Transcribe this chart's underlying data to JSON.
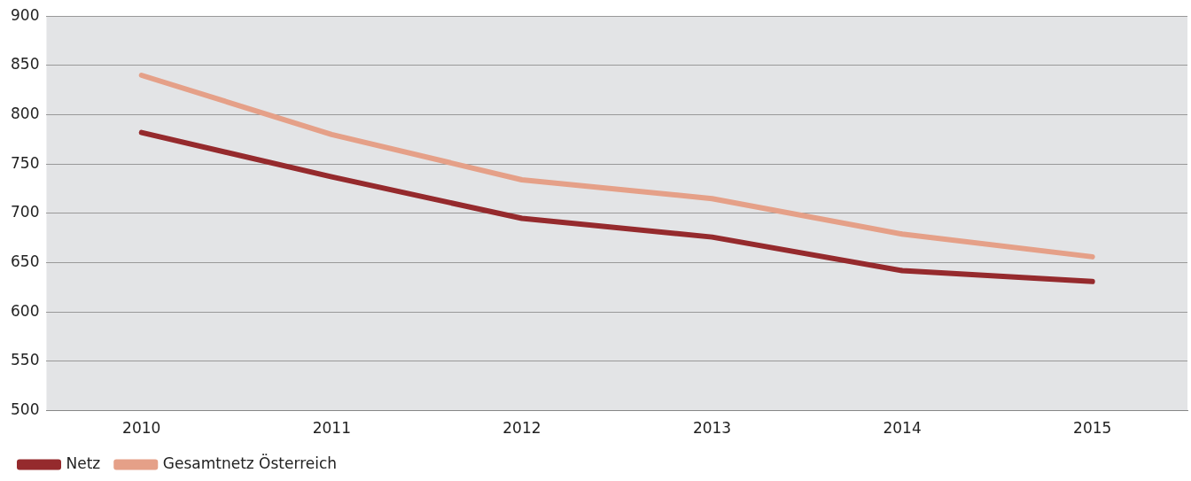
{
  "chart_data": {
    "type": "line",
    "categories": [
      "2010",
      "2011",
      "2012",
      "2013",
      "2014",
      "2015"
    ],
    "series": [
      {
        "name": "Netz",
        "color": "#952a2d",
        "values": [
          782,
          737,
          695,
          676,
          642,
          631
        ]
      },
      {
        "name": "Gesamtnetz Österreich",
        "color": "#e5a088",
        "values": [
          840,
          780,
          734,
          715,
          679,
          656
        ]
      }
    ],
    "ylim": [
      500,
      900
    ],
    "yticks": [
      500,
      550,
      600,
      650,
      700,
      750,
      800,
      850,
      900
    ],
    "grid": "y",
    "legend": "bottom left",
    "marker": "none",
    "line_style": "solid"
  }
}
